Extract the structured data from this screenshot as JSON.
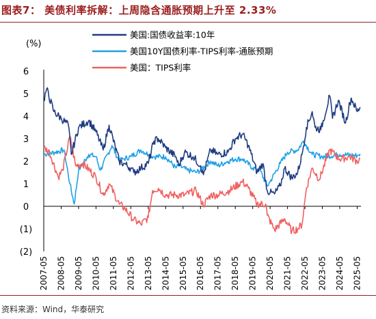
{
  "header": {
    "title": "图表7： 美债利率拆解：上周隐含通胀预期上升至 2.33%"
  },
  "footer": {
    "source": "资料来源：Wind，华泰研究"
  },
  "chart_data": {
    "type": "line",
    "ylabel": "(%)",
    "ylim": [
      -2,
      6
    ],
    "y_ticks": [
      "6",
      "5",
      "4",
      "3",
      "2",
      "1",
      "0",
      "(1)",
      "(2)"
    ],
    "y_tick_values": [
      6,
      5,
      4,
      3,
      2,
      1,
      0,
      -1,
      -2
    ],
    "x_ticks": [
      "2007-05",
      "2008-05",
      "2009-05",
      "2010-05",
      "2011-05",
      "2012-05",
      "2013-05",
      "2014-05",
      "2015-05",
      "2016-05",
      "2017-05",
      "2018-05",
      "2019-05",
      "2020-05",
      "2021-05",
      "2022-05",
      "2023-05",
      "2024-05",
      "2025-05"
    ],
    "legend_position": "top-center",
    "series": [
      {
        "name": "美国:国债收益率:10年",
        "color": "#1f3b80",
        "x": [
          "2007-05",
          "2007-07",
          "2007-12",
          "2008-05",
          "2008-10",
          "2008-12",
          "2009-05",
          "2009-12",
          "2010-05",
          "2010-10",
          "2011-02",
          "2011-09",
          "2011-12",
          "2012-05",
          "2012-07",
          "2012-12",
          "2013-05",
          "2013-09",
          "2013-12",
          "2014-05",
          "2014-12",
          "2015-02",
          "2015-06",
          "2015-12",
          "2016-05",
          "2016-07",
          "2016-12",
          "2017-05",
          "2017-12",
          "2018-05",
          "2018-10",
          "2019-02",
          "2019-08",
          "2019-12",
          "2020-03",
          "2020-05",
          "2020-08",
          "2020-12",
          "2021-03",
          "2021-08",
          "2021-12",
          "2022-03",
          "2022-06",
          "2022-10",
          "2022-12",
          "2023-04",
          "2023-10",
          "2023-12",
          "2024-04",
          "2024-09",
          "2024-12",
          "2025-01",
          "2025-05",
          "2025-07"
        ],
        "values": [
          4.7,
          5.2,
          4.2,
          3.9,
          3.6,
          2.3,
          3.5,
          3.8,
          3.3,
          2.5,
          3.6,
          2.0,
          1.9,
          1.7,
          1.5,
          1.7,
          1.9,
          2.9,
          3.0,
          2.6,
          2.2,
          1.8,
          2.4,
          2.2,
          1.8,
          1.4,
          2.5,
          2.3,
          2.4,
          3.0,
          3.2,
          2.7,
          1.5,
          1.9,
          0.7,
          0.6,
          0.55,
          0.9,
          1.7,
          1.25,
          1.5,
          2.3,
          3.5,
          4.2,
          3.5,
          3.4,
          4.9,
          3.9,
          4.7,
          3.7,
          4.6,
          4.8,
          4.2,
          4.4
        ]
      },
      {
        "name": "美国10Y国债利率-TIPS利率-通胀预期",
        "color": "#1fa0e6",
        "x": [
          "2007-05",
          "2008-01",
          "2008-07",
          "2008-11",
          "2009-02",
          "2009-05",
          "2009-12",
          "2010-05",
          "2010-08",
          "2011-04",
          "2011-09",
          "2011-12",
          "2012-05",
          "2012-12",
          "2013-05",
          "2013-09",
          "2014-05",
          "2014-12",
          "2015-02",
          "2015-08",
          "2015-12",
          "2016-02",
          "2016-05",
          "2016-12",
          "2017-05",
          "2017-12",
          "2018-05",
          "2018-10",
          "2019-05",
          "2019-10",
          "2020-03",
          "2020-05",
          "2020-12",
          "2021-05",
          "2021-12",
          "2022-04",
          "2022-10",
          "2023-05",
          "2024-05",
          "2025-05",
          "2025-07"
        ],
        "values": [
          2.3,
          2.4,
          2.5,
          1.0,
          0.1,
          1.6,
          2.3,
          2.2,
          1.6,
          2.7,
          2.0,
          2.1,
          2.2,
          2.5,
          2.3,
          2.2,
          2.2,
          1.7,
          1.8,
          1.6,
          1.55,
          1.5,
          1.6,
          2.0,
          1.8,
          2.0,
          2.1,
          2.1,
          1.7,
          1.6,
          0.9,
          1.1,
          1.9,
          2.4,
          2.5,
          2.9,
          2.3,
          2.2,
          2.3,
          2.25,
          2.33
        ]
      },
      {
        "name": "美国：TIPS利率",
        "color": "#f06060",
        "x": [
          "2007-05",
          "2007-09",
          "2008-03",
          "2008-06",
          "2008-11",
          "2009-03",
          "2009-08",
          "2010-05",
          "2010-10",
          "2011-02",
          "2011-09",
          "2012-01",
          "2012-07",
          "2012-12",
          "2013-05",
          "2013-08",
          "2013-12",
          "2014-05",
          "2014-12",
          "2015-06",
          "2016-02",
          "2016-07",
          "2016-12",
          "2017-05",
          "2018-01",
          "2018-10",
          "2019-02",
          "2019-08",
          "2020-02",
          "2020-03",
          "2020-08",
          "2021-03",
          "2021-08",
          "2021-12",
          "2022-03",
          "2022-06",
          "2022-10",
          "2023-03",
          "2023-10",
          "2024-05",
          "2024-12",
          "2025-05",
          "2025-07"
        ],
        "values": [
          2.6,
          2.4,
          1.3,
          1.6,
          3.1,
          1.8,
          1.9,
          1.3,
          0.5,
          1.0,
          0.1,
          -0.1,
          -0.6,
          -0.8,
          -0.5,
          0.7,
          0.8,
          0.5,
          0.5,
          0.5,
          0.7,
          0.05,
          0.5,
          0.5,
          0.7,
          1.1,
          0.8,
          0.1,
          0.1,
          -0.4,
          -1.05,
          -0.55,
          -1.1,
          -1.0,
          -0.8,
          0.8,
          1.7,
          1.2,
          2.5,
          2.1,
          2.2,
          2.0,
          2.1
        ]
      }
    ]
  }
}
